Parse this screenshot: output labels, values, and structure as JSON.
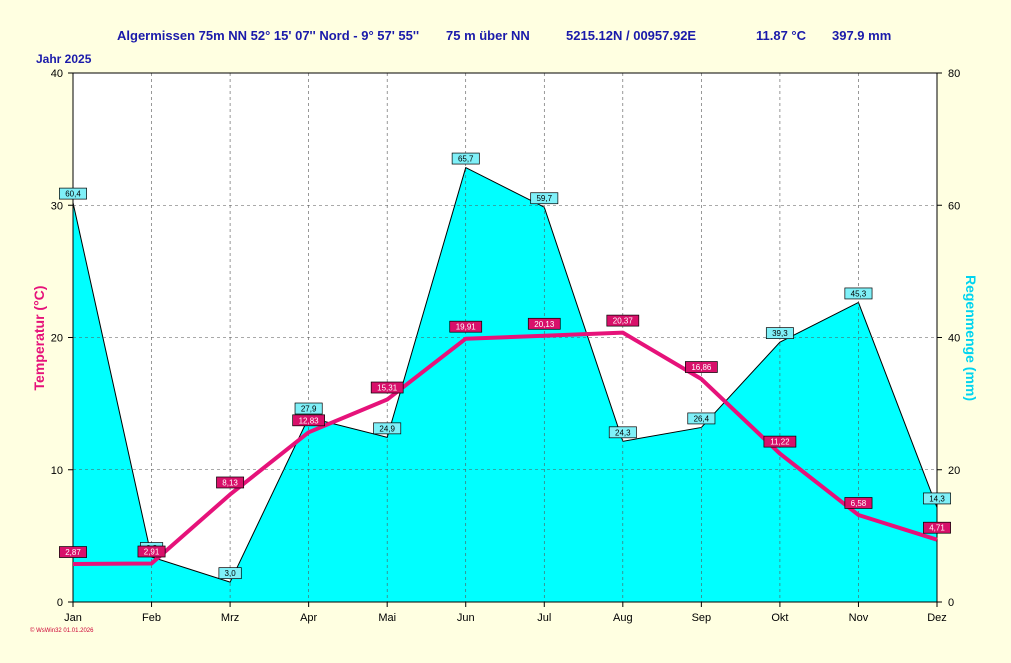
{
  "header": {
    "station": "Algermissen  75m NN  52° 15' 07'' Nord - 9° 57' 55''",
    "altitude": "75 m über NN",
    "coords": "5215.12N / 00957.92E",
    "mean_temp": "11.87 °C",
    "total_precip": "397.9 mm",
    "year_label": "Jahr  2025"
  },
  "footer": {
    "text": "© WsWin32  01.01.2026"
  },
  "colors": {
    "background": "#ffffe1",
    "rain_fill": "#00ffff",
    "temp_line": "#e6127a",
    "axis_text": "#cc0033",
    "header_text": "#1a1aaa",
    "right_axis_label": "#00d4f0"
  },
  "chart_data": {
    "type": "line",
    "categories": [
      "Jan",
      "Feb",
      "Mrz",
      "Apr",
      "Mai",
      "Jun",
      "Jul",
      "Aug",
      "Sep",
      "Okt",
      "Nov",
      "Dez"
    ],
    "series": [
      {
        "name": "Temperatur (°C)",
        "axis": "left",
        "type": "line",
        "values": [
          2.87,
          2.91,
          8.13,
          12.83,
          15.31,
          19.91,
          20.13,
          20.37,
          16.86,
          11.22,
          6.58,
          4.71
        ],
        "labels": [
          "2,87",
          "2,91",
          "8,13",
          "12,83",
          "15,31",
          "19,91",
          "20,13",
          "20,37",
          "16,86",
          "11,22",
          "6,58",
          "4,71"
        ]
      },
      {
        "name": "Regenmenge (mm)",
        "axis": "right",
        "type": "area",
        "values": [
          60.4,
          6.8,
          3.0,
          27.9,
          24.9,
          65.7,
          59.7,
          24.3,
          26.4,
          39.3,
          45.3,
          14.3
        ],
        "labels": [
          "60,4",
          "6,8",
          "3,0",
          "27,9",
          "24,9",
          "65,7",
          "59,7",
          "24,3",
          "26,4",
          "39,3",
          "45,3",
          "14,3"
        ]
      }
    ],
    "ylabel": "Temperatur  (°C)",
    "ylabel_right": "Regenmenge  (mm)",
    "ylim": [
      0,
      40
    ],
    "ylim_right": [
      0,
      80
    ],
    "yticks": [
      "0",
      "10",
      "20",
      "30",
      "40"
    ],
    "yticks_right": [
      "0",
      "20",
      "40",
      "60",
      "80"
    ],
    "grid": true
  }
}
